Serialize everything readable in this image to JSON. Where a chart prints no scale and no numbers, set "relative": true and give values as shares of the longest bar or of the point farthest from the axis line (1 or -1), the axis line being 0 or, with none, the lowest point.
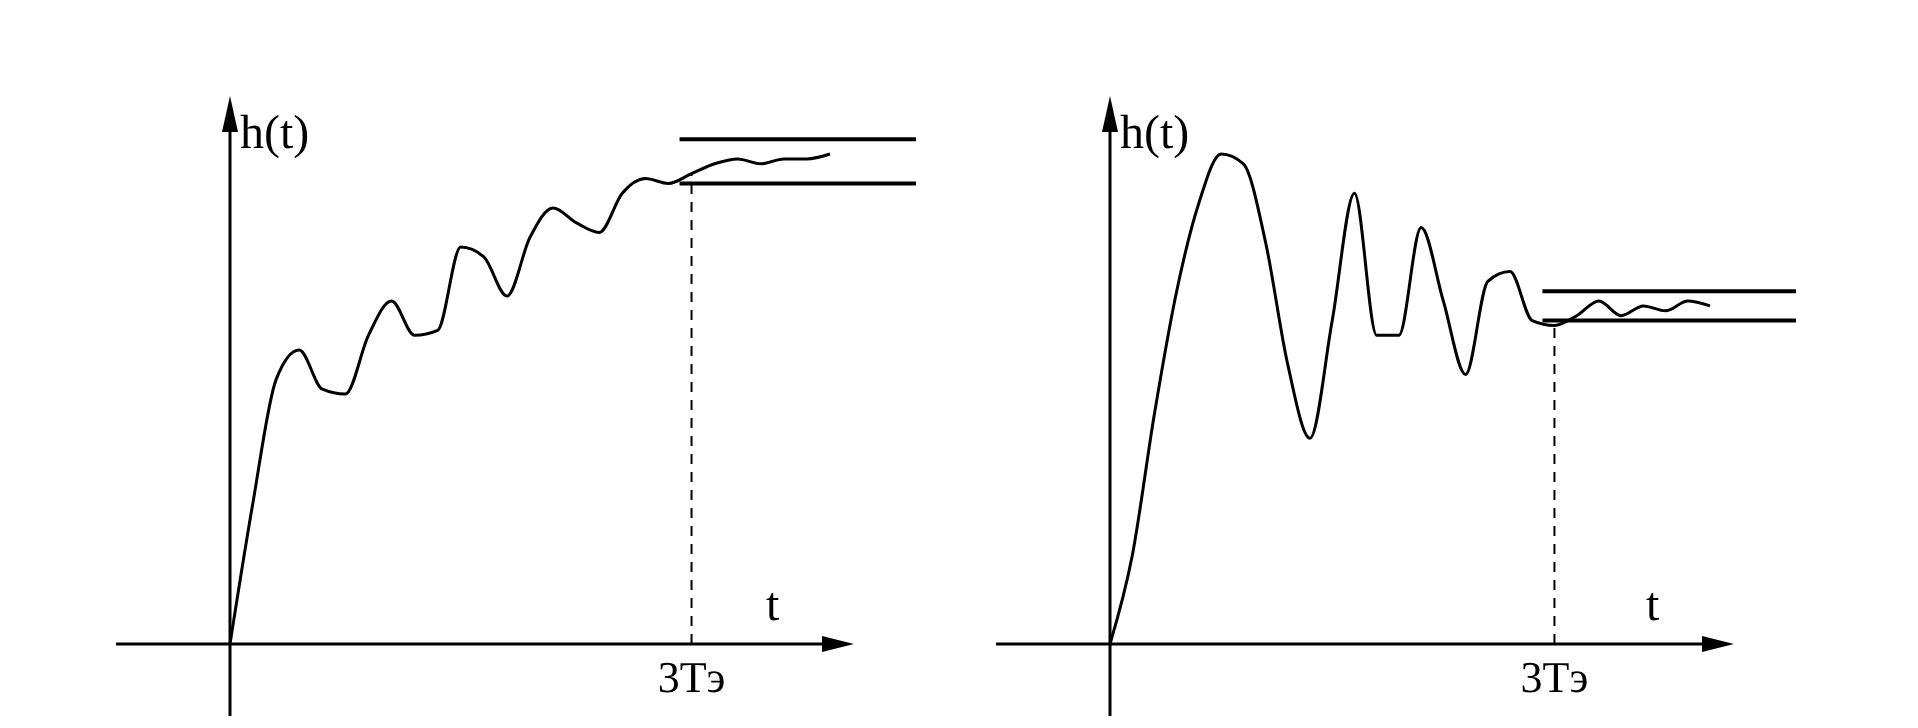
{
  "chart_data": [
    {
      "type": "line",
      "relative": true,
      "xlabel": "t",
      "ylabel": "h(t)",
      "color": "#000000",
      "line_style": "solid",
      "annotations": [
        "3Tэ"
      ],
      "categories": [
        null,
        null,
        null,
        null,
        null,
        null,
        null,
        null,
        null,
        null,
        null,
        null,
        null,
        null,
        null,
        null,
        null,
        null,
        null,
        null,
        null,
        null,
        null,
        null,
        null,
        null,
        null
      ],
      "values": [
        0,
        0.29,
        0.54,
        0.6,
        0.52,
        0.51,
        0.63,
        0.7,
        0.63,
        0.64,
        0.81,
        0.79,
        0.71,
        0.83,
        0.89,
        0.86,
        0.84,
        0.92,
        0.95,
        0.94,
        0.96,
        0.98,
        0.99,
        0.98,
        0.99,
        0.99,
        1
      ],
      "ref_lines": [
        {
          "axis": "y",
          "value": 1.03
        },
        {
          "axis": "y",
          "value": 0.94
        }
      ]
    },
    {
      "type": "line",
      "relative": true,
      "xlabel": "t",
      "ylabel": "h(t)",
      "color": "#000000",
      "line_style": "solid",
      "annotations": [
        "3Tэ"
      ],
      "categories": [
        null,
        null,
        null,
        null,
        null,
        null,
        null,
        null,
        null,
        null,
        null,
        null,
        null,
        null,
        null,
        null,
        null,
        null,
        null,
        null,
        null,
        null,
        null,
        null,
        null,
        null,
        null,
        null
      ],
      "values": [
        0,
        0.18,
        0.47,
        0.72,
        0.9,
        1,
        0.98,
        0.82,
        0.57,
        0.42,
        0.66,
        0.92,
        0.63,
        0.63,
        0.85,
        0.7,
        0.55,
        0.74,
        0.76,
        0.66,
        0.65,
        0.67,
        0.7,
        0.67,
        0.69,
        0.68,
        0.7,
        0.69
      ],
      "ref_lines": [
        {
          "axis": "y",
          "value": 0.72
        },
        {
          "axis": "y",
          "value": 0.66
        }
      ]
    }
  ]
}
